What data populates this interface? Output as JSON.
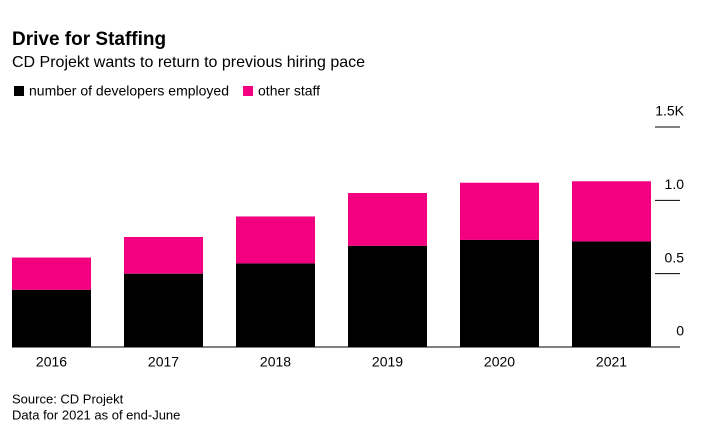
{
  "chart_data": {
    "type": "stacked_bar",
    "title": "Drive for Staffing",
    "subtitle": "CD Projekt wants to return to previous hiring pace",
    "categories": [
      "2016",
      "2017",
      "2018",
      "2019",
      "2020",
      "2021"
    ],
    "series": [
      {
        "name": "number of developers employed",
        "color": "#000000",
        "values": [
          0.39,
          0.5,
          0.57,
          0.69,
          0.73,
          0.72
        ]
      },
      {
        "name": "other staff",
        "color": "#f2007f",
        "values": [
          0.22,
          0.25,
          0.32,
          0.36,
          0.39,
          0.41
        ]
      }
    ],
    "ylim": [
      0,
      1.5
    ],
    "yticks": [
      0,
      0.5,
      {
        "value": 1,
        "label": "1.0"
      },
      {
        "value": 1.5,
        "label": "1.5K"
      }
    ],
    "source": "Source: CD Projekt",
    "note": "Data for 2021 as of end-June"
  }
}
